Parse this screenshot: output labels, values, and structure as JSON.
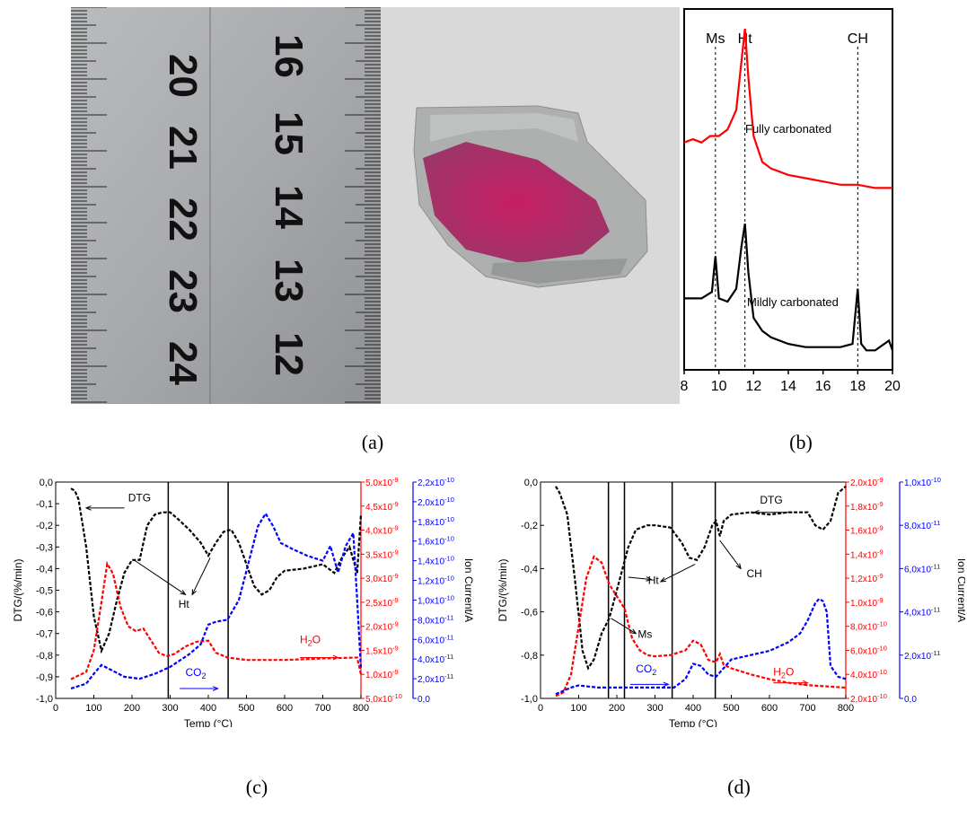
{
  "captions": {
    "a": "(a)",
    "b": "(b)",
    "c": "(c)",
    "d": "(d)"
  },
  "ruler": {
    "top_numbers": [
      "20",
      "21",
      "22",
      "23",
      "24"
    ],
    "bottom_numbers": [
      "16",
      "15",
      "14",
      "13",
      "12"
    ]
  },
  "colors": {
    "dtg": "#000000",
    "h2o": "#ff0000",
    "co2": "#0000ff",
    "xrd_fully": "#ff0000",
    "xrd_mildly": "#000000",
    "phenolphthalein": "#d4145a"
  },
  "chart_data": [
    {
      "id": "b",
      "type": "line",
      "x_ticks": [
        "8",
        "10",
        "12",
        "14",
        "16",
        "18",
        "20"
      ],
      "xlim": [
        8,
        20
      ],
      "phase_labels": [
        {
          "label": "Ms",
          "x": 9.8
        },
        {
          "label": "Ht",
          "x": 11.5
        },
        {
          "label": "CH",
          "x": 18.0
        }
      ],
      "series": [
        {
          "name": "Fully carbonated",
          "x": [
            8,
            8.5,
            9,
            9.5,
            10,
            10.5,
            11,
            11.3,
            11.5,
            11.7,
            12,
            12.5,
            13,
            14,
            15,
            16,
            17,
            18,
            19,
            20
          ],
          "y": [
            0.7,
            0.71,
            0.7,
            0.72,
            0.72,
            0.74,
            0.8,
            0.95,
            1.05,
            0.9,
            0.72,
            0.64,
            0.62,
            0.6,
            0.59,
            0.58,
            0.57,
            0.57,
            0.56,
            0.56
          ]
        },
        {
          "name": "Mildly carbonated",
          "x": [
            8,
            9,
            9.6,
            9.8,
            10,
            10.5,
            11,
            11.3,
            11.5,
            11.7,
            12,
            12.5,
            13,
            14,
            15,
            16,
            17,
            17.7,
            18,
            18.2,
            18.5,
            19,
            19.8,
            20
          ],
          "y": [
            0.22,
            0.22,
            0.24,
            0.35,
            0.22,
            0.21,
            0.25,
            0.38,
            0.45,
            0.3,
            0.16,
            0.12,
            0.1,
            0.08,
            0.07,
            0.07,
            0.07,
            0.08,
            0.25,
            0.08,
            0.06,
            0.06,
            0.09,
            0.06
          ]
        }
      ]
    },
    {
      "id": "c",
      "type": "line",
      "xlabel": "Temp (°C)",
      "ylabel_left": "DTG/(%/min)",
      "ylabel_right": "Ion Current/A",
      "x_ticks": [
        "0",
        "100",
        "200",
        "300",
        "400",
        "500",
        "600",
        "700",
        "800"
      ],
      "xlim": [
        0,
        800
      ],
      "y_left_ticks": [
        "0,0",
        "-0,1",
        "-0,2",
        "-0,3",
        "-0,4",
        "-0,5",
        "-0,6",
        "-0,7",
        "-0,8",
        "-0,9",
        "-1,0"
      ],
      "ylim_left": [
        -1.0,
        0.0
      ],
      "y_h2o_ticks": [
        "5,0x10-10",
        "1,0x10-9",
        "1,5x10-9",
        "2,0x10-9",
        "2,5x10-9",
        "3,0x10-9",
        "3,5x10-9",
        "4,0x10-9",
        "4,5x10-9",
        "5,0x10-9"
      ],
      "ylim_h2o": [
        5e-10,
        5e-09
      ],
      "y_co2_ticks": [
        "0,0",
        "2,0x10-11",
        "4,0x10-11",
        "6,0x10-11",
        "8,0x10-11",
        "1,0x10-10",
        "1,2x10-10",
        "1,4x10-10",
        "1,6x10-10",
        "1,8x10-10",
        "2,0x10-10",
        "2,2x10-10"
      ],
      "ylim_co2": [
        0,
        2.2e-10
      ],
      "vlines": [
        295,
        452
      ],
      "annotations": {
        "dtg": "DTG",
        "ht": "Ht",
        "h2o": "H2O",
        "co2": "CO2"
      },
      "series": [
        {
          "name": "DTG",
          "axis": "left",
          "x": [
            40,
            50,
            60,
            80,
            100,
            120,
            140,
            160,
            180,
            200,
            220,
            240,
            260,
            280,
            300,
            320,
            350,
            380,
            400,
            420,
            440,
            460,
            480,
            500,
            520,
            540,
            560,
            580,
            600,
            650,
            700,
            730,
            750,
            770,
            790,
            800
          ],
          "y": [
            -0.03,
            -0.04,
            -0.08,
            -0.3,
            -0.62,
            -0.78,
            -0.7,
            -0.55,
            -0.42,
            -0.36,
            -0.36,
            -0.2,
            -0.15,
            -0.14,
            -0.14,
            -0.17,
            -0.22,
            -0.28,
            -0.34,
            -0.28,
            -0.23,
            -0.22,
            -0.28,
            -0.38,
            -0.48,
            -0.52,
            -0.5,
            -0.44,
            -0.41,
            -0.4,
            -0.38,
            -0.42,
            -0.35,
            -0.3,
            -0.42,
            -0.15
          ]
        },
        {
          "name": "H2O",
          "axis": "h2o",
          "x": [
            40,
            80,
            100,
            120,
            135,
            150,
            170,
            190,
            210,
            230,
            250,
            270,
            290,
            310,
            340,
            370,
            400,
            420,
            450,
            500,
            600,
            700,
            790,
            800
          ],
          "y": [
            9e-10,
            1.05e-09,
            1.5e-09,
            2.5e-09,
            3.3e-09,
            3.1e-09,
            2.4e-09,
            2e-09,
            1.9e-09,
            1.95e-09,
            1.7e-09,
            1.45e-09,
            1.38e-09,
            1.42e-09,
            1.58e-09,
            1.68e-09,
            1.7e-09,
            1.45e-09,
            1.35e-09,
            1.3e-09,
            1.3e-09,
            1.33e-09,
            1.35e-09,
            1e-09
          ]
        },
        {
          "name": "CO2",
          "axis": "co2",
          "x": [
            40,
            80,
            100,
            120,
            140,
            180,
            220,
            260,
            300,
            350,
            380,
            400,
            420,
            450,
            480,
            510,
            530,
            550,
            570,
            590,
            620,
            660,
            700,
            720,
            740,
            760,
            780,
            790,
            800
          ],
          "y": [
            1e-11,
            1.5e-11,
            2.5e-11,
            3.4e-11,
            3e-11,
            2.2e-11,
            2e-11,
            2.5e-11,
            3.2e-11,
            4.5e-11,
            5.5e-11,
            7.5e-11,
            7.8e-11,
            8e-11,
            1e-10,
            1.45e-10,
            1.75e-10,
            1.88e-10,
            1.75e-10,
            1.58e-10,
            1.52e-10,
            1.45e-10,
            1.4e-10,
            1.55e-10,
            1.28e-10,
            1.55e-10,
            1.68e-10,
            1e-10,
            3e-11
          ]
        }
      ]
    },
    {
      "id": "d",
      "type": "line",
      "xlabel": "Temp (°C)",
      "ylabel_left": "DTG/(%/min)",
      "ylabel_right": "Ion Current/A",
      "x_ticks": [
        "0",
        "100",
        "200",
        "300",
        "400",
        "500",
        "600",
        "700",
        "800"
      ],
      "xlim": [
        0,
        800
      ],
      "y_left_ticks": [
        "0,0",
        "-0,2",
        "-0,4",
        "-0,6",
        "-0,8",
        "-1,0"
      ],
      "ylim_left": [
        -1.0,
        0.0
      ],
      "y_h2o_ticks": [
        "2,0x10-10",
        "4,0x10-10",
        "6,0x10-10",
        "8,0x10-10",
        "1,0x10-9",
        "1,2x10-9",
        "1,4x10-9",
        "1,6x10-9",
        "1,8x10-9",
        "2,0x10-9"
      ],
      "ylim_h2o": [
        2e-10,
        2e-09
      ],
      "y_co2_ticks": [
        "0,0",
        "2,0x10-11",
        "4,0x10-11",
        "6,0x10-11",
        "8,0x10-11",
        "1,0x10-10"
      ],
      "ylim_co2": [
        0,
        1e-10
      ],
      "vlines": [
        178,
        220,
        345,
        458
      ],
      "annotations": {
        "dtg": "DTG",
        "ht": "Ht",
        "ms": "Ms",
        "ch": "CH",
        "h2o": "H2O",
        "co2": "CO2"
      },
      "series": [
        {
          "name": "DTG",
          "axis": "left",
          "x": [
            40,
            50,
            70,
            90,
            110,
            125,
            140,
            160,
            180,
            200,
            215,
            230,
            250,
            280,
            300,
            340,
            370,
            390,
            410,
            430,
            450,
            460,
            470,
            480,
            500,
            550,
            600,
            650,
            700,
            720,
            740,
            760,
            780,
            800
          ],
          "y": [
            -0.02,
            -0.05,
            -0.15,
            -0.45,
            -0.78,
            -0.86,
            -0.82,
            -0.7,
            -0.63,
            -0.5,
            -0.4,
            -0.3,
            -0.22,
            -0.2,
            -0.2,
            -0.21,
            -0.28,
            -0.35,
            -0.36,
            -0.3,
            -0.2,
            -0.18,
            -0.25,
            -0.18,
            -0.15,
            -0.14,
            -0.15,
            -0.14,
            -0.14,
            -0.2,
            -0.22,
            -0.18,
            -0.05,
            -0.02
          ]
        },
        {
          "name": "H2O",
          "axis": "h2o",
          "x": [
            40,
            60,
            80,
            100,
            120,
            140,
            160,
            180,
            200,
            220,
            240,
            260,
            280,
            300,
            340,
            380,
            400,
            420,
            440,
            460,
            470,
            480,
            500,
            550,
            600,
            650,
            700,
            750,
            800
          ],
          "y": [
            2.2e-10,
            2.5e-10,
            4e-10,
            8e-10,
            1.2e-09,
            1.38e-09,
            1.33e-09,
            1.15e-09,
            1.05e-09,
            9.5e-10,
            7e-10,
            6e-10,
            5.6e-10,
            5.5e-10,
            5.6e-10,
            6e-10,
            6.8e-10,
            6.5e-10,
            5.2e-10,
            5e-10,
            5.7e-10,
            4.8e-10,
            4.5e-10,
            4e-10,
            3.6e-10,
            3.3e-10,
            3.1e-10,
            3e-10,
            2.9e-10
          ]
        },
        {
          "name": "CO2",
          "axis": "co2",
          "x": [
            40,
            80,
            100,
            150,
            200,
            250,
            300,
            350,
            380,
            400,
            420,
            440,
            460,
            480,
            500,
            550,
            600,
            650,
            680,
            700,
            720,
            730,
            740,
            750,
            760,
            780,
            800
          ],
          "y": [
            2e-12,
            5e-12,
            6e-12,
            5e-12,
            5e-12,
            5e-12,
            5e-12,
            5e-12,
            9e-12,
            1.6e-11,
            1.5e-11,
            1.1e-11,
            1e-11,
            1.4e-11,
            1.8e-11,
            2e-11,
            2.2e-11,
            2.6e-11,
            3e-11,
            3.6e-11,
            4.4e-11,
            4.6e-11,
            4.5e-11,
            4e-11,
            1.5e-11,
            1e-11,
            9e-12
          ]
        }
      ]
    }
  ]
}
